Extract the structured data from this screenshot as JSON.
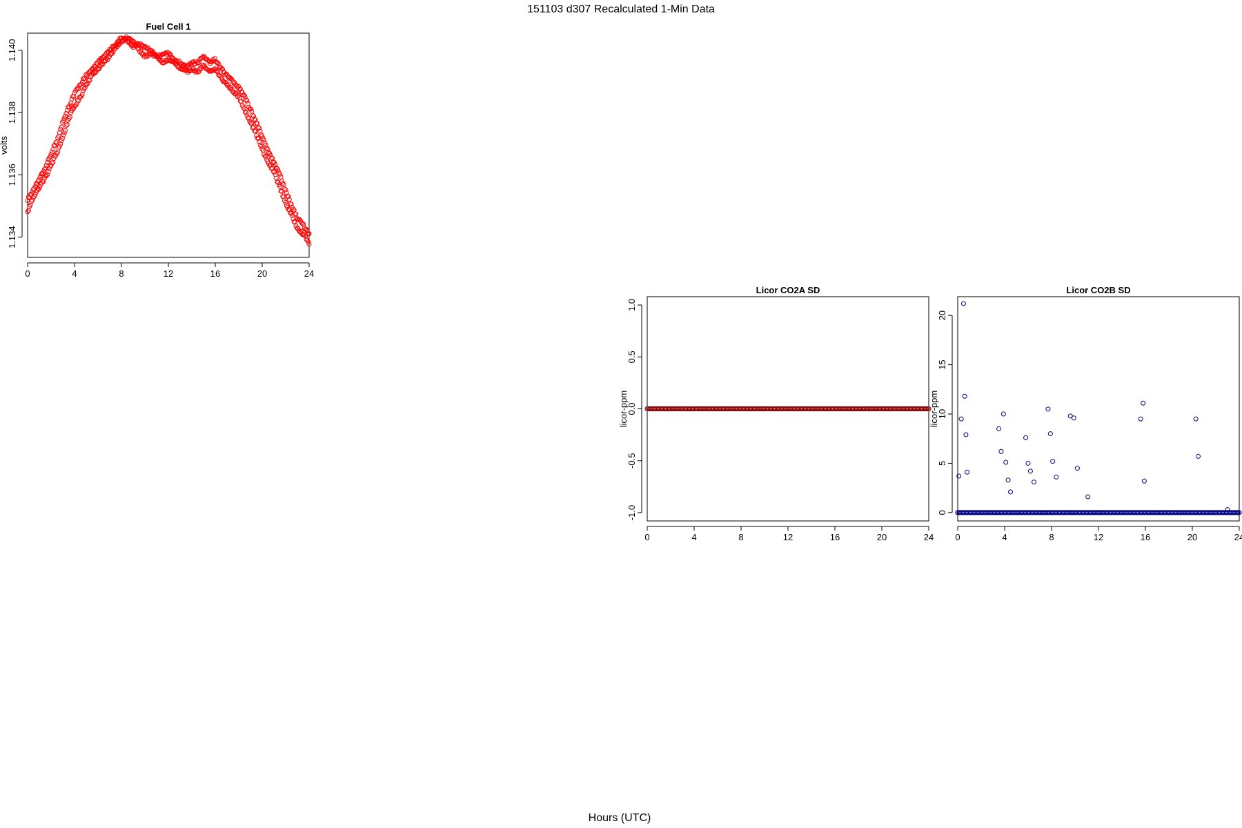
{
  "figure": {
    "title": "151103   d307   Recalculated 1-Min Data",
    "xlabel": "Hours (UTC)"
  },
  "chart_data": [
    {
      "title": "Fuel Cell 1",
      "type": "scatter",
      "ylabel": "volts",
      "color": "#ff0000",
      "xlim": [
        0,
        24
      ],
      "xticks": [
        0,
        4,
        8,
        12,
        16,
        20,
        24
      ],
      "xtick_labels": [
        "0",
        "4",
        "8",
        "12",
        "16",
        "20",
        "24"
      ],
      "ylim": [
        1.13335,
        1.14055
      ],
      "yticks": [
        1.134,
        1.136,
        1.138,
        1.14
      ],
      "ytick_labels": [
        "1.134",
        "1.136",
        "1.138",
        "1.140"
      ],
      "series": [
        {
          "x": [
            0,
            0.5,
            1,
            1.5,
            2,
            2.5,
            3,
            3.5,
            4,
            4.5,
            5,
            5.5,
            6,
            6.5,
            7,
            7.5,
            8,
            8.5,
            9,
            9.5,
            10,
            10.5,
            11,
            11.5,
            12,
            12.5,
            13,
            13.5,
            14,
            14.5,
            15,
            15.5,
            16,
            16.5,
            17,
            17.5,
            18,
            18.5,
            19,
            19.5,
            20,
            20.5,
            21,
            21.5,
            22,
            22.5,
            23,
            23.5,
            24
          ],
          "y": [
            1.1348,
            1.1353,
            1.1356,
            1.1359,
            1.1363,
            1.1367,
            1.1372,
            1.1378,
            1.1382,
            1.1385,
            1.1389,
            1.1392,
            1.1394,
            1.1396,
            1.1398,
            1.1401,
            1.1403,
            1.1404,
            1.1403,
            1.14,
            1.1398,
            1.1399,
            1.1398,
            1.1396,
            1.1397,
            1.1396,
            1.1394,
            1.1393,
            1.1394,
            1.1393,
            1.1395,
            1.1393,
            1.1394,
            1.1391,
            1.1389,
            1.1387,
            1.1385,
            1.1381,
            1.1377,
            1.1373,
            1.1368,
            1.1364,
            1.1361,
            1.1356,
            1.1351,
            1.1347,
            1.1343,
            1.1341,
            1.1338
          ]
        },
        {
          "x": [
            0,
            0.5,
            1,
            1.5,
            2,
            2.5,
            3,
            3.5,
            4,
            4.5,
            5,
            5.5,
            6,
            6.5,
            7,
            7.5,
            8,
            8.5,
            9,
            9.5,
            10,
            10.5,
            11,
            11.5,
            12,
            12.5,
            13,
            13.5,
            14,
            14.5,
            15,
            15.5,
            16,
            16.5,
            17,
            17.5,
            18,
            18.5,
            19,
            19.5,
            20,
            20.5,
            21,
            21.5,
            22,
            22.5,
            23,
            23.5,
            24
          ],
          "y": [
            1.1352,
            1.1355,
            1.1359,
            1.1362,
            1.1367,
            1.1371,
            1.1377,
            1.1382,
            1.1386,
            1.1389,
            1.1392,
            1.1394,
            1.1396,
            1.1398,
            1.14,
            1.1402,
            1.1404,
            1.1403,
            1.1401,
            1.1402,
            1.1401,
            1.14,
            1.1398,
            1.1399,
            1.1399,
            1.1397,
            1.1396,
            1.1395,
            1.1396,
            1.1396,
            1.1398,
            1.1396,
            1.1397,
            1.1394,
            1.1392,
            1.139,
            1.1388,
            1.1385,
            1.1381,
            1.1377,
            1.1372,
            1.1368,
            1.1364,
            1.136,
            1.1355,
            1.135,
            1.1346,
            1.1344,
            1.1341
          ]
        }
      ]
    },
    {
      "title": "Licor CO2A SD",
      "type": "scatter",
      "ylabel": "licor-ppm",
      "color": "#8b0000",
      "xlim": [
        0,
        24
      ],
      "xticks": [
        0,
        4,
        8,
        12,
        16,
        20,
        24
      ],
      "xtick_labels": [
        "0",
        "4",
        "8",
        "12",
        "16",
        "20",
        "24"
      ],
      "ylim": [
        -1.08,
        1.08
      ],
      "yticks": [
        -1,
        -0.5,
        0,
        0.5,
        1
      ],
      "ytick_labels": [
        "-1.0",
        "-0.5",
        "0.0",
        "0.5",
        "1.0"
      ],
      "series": [
        {
          "x": [
            0,
            24
          ],
          "y": [
            0,
            0
          ]
        }
      ]
    },
    {
      "title": "Licor CO2B SD",
      "type": "scatter",
      "ylabel": "licor-ppm",
      "color": "#000080",
      "xlim": [
        0,
        24
      ],
      "xticks": [
        0,
        4,
        8,
        12,
        16,
        20,
        24
      ],
      "xtick_labels": [
        "0",
        "4",
        "8",
        "12",
        "16",
        "20",
        "24"
      ],
      "ylim": [
        -0.85,
        21.9
      ],
      "yticks": [
        0,
        5,
        10,
        15,
        20
      ],
      "ytick_labels": [
        "0",
        "5",
        "10",
        "15",
        "20"
      ],
      "series": [
        {
          "x": [
            0.1,
            0.3,
            0.5,
            0.6,
            0.7,
            0.8,
            3.5,
            3.7,
            3.9,
            4.1,
            4.3,
            4.5,
            5.8,
            6.0,
            6.2,
            6.5,
            7.7,
            7.9,
            8.1,
            8.4,
            9.6,
            9.9,
            10.2,
            11.1,
            15.6,
            15.8,
            15.9,
            20.3,
            20.5,
            23.0
          ],
          "y": [
            3.7,
            9.5,
            21.2,
            11.8,
            7.9,
            4.1,
            8.5,
            6.2,
            10.0,
            5.1,
            3.3,
            2.1,
            7.6,
            5.0,
            4.2,
            3.1,
            10.5,
            8.0,
            5.2,
            3.6,
            9.8,
            9.6,
            4.5,
            1.6,
            9.5,
            11.1,
            3.2,
            9.5,
            5.7,
            0.3
          ]
        },
        {
          "x": [
            0,
            24
          ],
          "y": [
            0,
            0
          ]
        }
      ]
    }
  ]
}
